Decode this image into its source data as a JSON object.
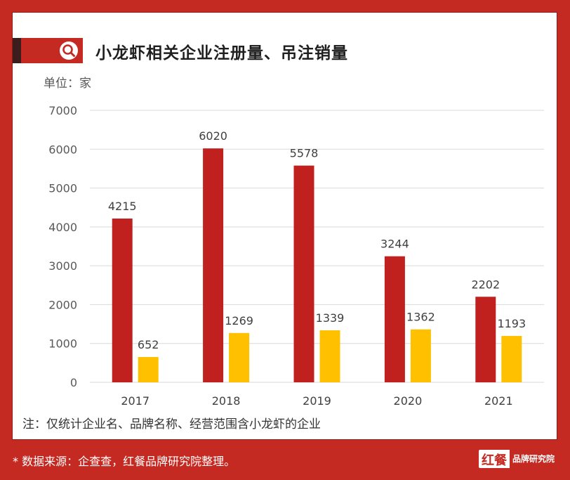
{
  "header": {
    "title": "小龙虾相关企业注册量、吊注销量",
    "unit_label": "单位：家"
  },
  "footer": {
    "note": "注：仅统计企业名、品牌名称、经营范围含小龙虾的企业",
    "source": "* 数据来源：企查查，红餐品牌研究院整理。",
    "logo_main": "红餐",
    "logo_sub": "品牌研究院"
  },
  "colors": {
    "background": "#c42a22",
    "series_registered": "#c0201e",
    "series_cancelled": "#ffc000",
    "grid": "#d9d9d9"
  },
  "chart_data": {
    "type": "bar",
    "title": "小龙虾相关企业注册量、吊注销量",
    "xlabel": "",
    "ylabel": "单位：家",
    "categories": [
      "2017",
      "2018",
      "2019",
      "2020",
      "2021"
    ],
    "series": [
      {
        "values": [
          4215,
          6020,
          5578,
          3244,
          2202
        ]
      },
      {
        "values": [
          652,
          1269,
          1339,
          1362,
          1193
        ]
      }
    ],
    "ylim": [
      0,
      7000
    ],
    "yticks": [
      0,
      1000,
      2000,
      3000,
      4000,
      5000,
      6000,
      7000
    ],
    "grid": true,
    "legend": "none",
    "data_labels": true
  }
}
